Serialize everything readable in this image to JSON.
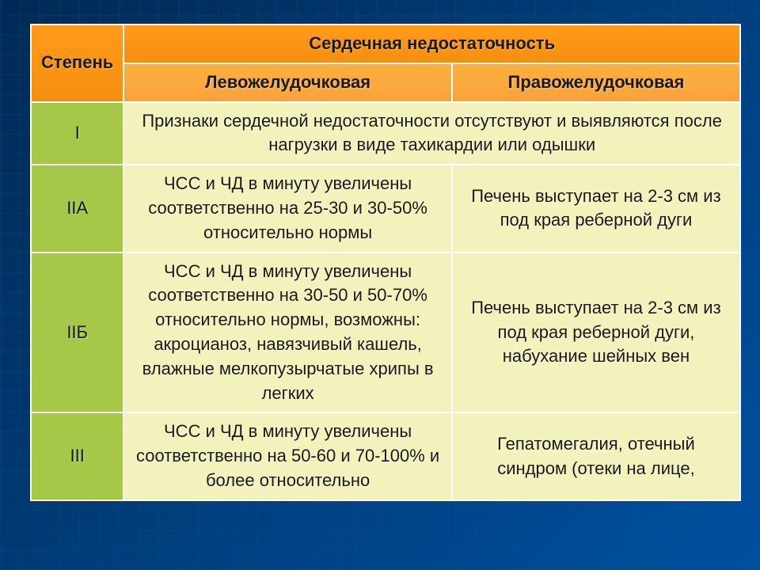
{
  "table": {
    "header": {
      "col1_label": "Степень",
      "main_title": "Сердечная недостаточность",
      "sub_left": "Левожелудочковая",
      "sub_right": "Правожелудочковая"
    },
    "rows": [
      {
        "stage": "I",
        "merged_text": "Признаки сердечной недостаточности отсутствуют и выявляются после нагрузки в виде тахикардии или одышки"
      },
      {
        "stage": "IIА",
        "left": "ЧСС и ЧД в минуту увеличены соответственно на 25-30 и 30-50% относительно нормы",
        "right": "Печень выступает на 2-3 см из под края реберной дуги"
      },
      {
        "stage": "IIБ",
        "left": "ЧСС и ЧД в минуту увеличены соответственно на 30-50 и 50-70% относительно нормы, возможны: акроцианоз, навязчивый кашель, влажные мелкопузырчатые хрипы в легких",
        "right": "Печень выступает на 2-3 см из под края реберной дуги, набухание шейных вен"
      },
      {
        "stage": "III",
        "left": "ЧСС и ЧД в минуту увеличены соответственно на 50-60 и 70-100% и более относительно",
        "right": "Гепатомегалия, отечный синдром (отеки на лице,"
      }
    ],
    "style": {
      "orange_bg": "#f58f0f",
      "orange_light_bg": "#f9a23a",
      "green_bg": "#a5c849",
      "yellow_bg": "#f4f2bc",
      "border_color": "#ffffff",
      "font_size": 22,
      "font_family": "Verdana",
      "background_primary": "#003d7a"
    }
  }
}
